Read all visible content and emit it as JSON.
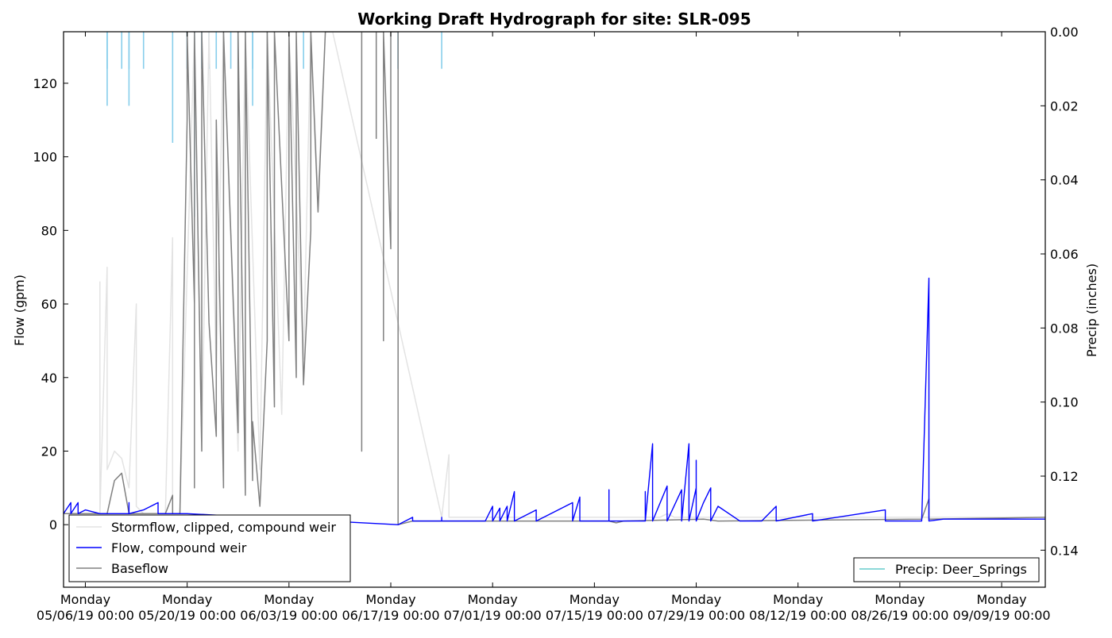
{
  "chart_data": {
    "type": "line",
    "title": "Working Draft Hydrograph for site: SLR-095",
    "ylabel": "Flow (gpm)",
    "y2label": "Precip (inches)",
    "xlim": [
      "2019-05-03",
      "2019-09-15"
    ],
    "ylim": [
      -17,
      134
    ],
    "y2lim": [
      0.15,
      0.0
    ],
    "y2_inverted": true,
    "grid": false,
    "x_ticks": [
      {
        "date": "2019-05-06",
        "line1": "Monday",
        "line2": "05/06/19 00:00"
      },
      {
        "date": "2019-05-20",
        "line1": "Monday",
        "line2": "05/20/19 00:00"
      },
      {
        "date": "2019-06-03",
        "line1": "Monday",
        "line2": "06/03/19 00:00"
      },
      {
        "date": "2019-06-17",
        "line1": "Monday",
        "line2": "06/17/19 00:00"
      },
      {
        "date": "2019-07-01",
        "line1": "Monday",
        "line2": "07/01/19 00:00"
      },
      {
        "date": "2019-07-15",
        "line1": "Monday",
        "line2": "07/15/19 00:00"
      },
      {
        "date": "2019-07-29",
        "line1": "Monday",
        "line2": "07/29/19 00:00"
      },
      {
        "date": "2019-08-12",
        "line1": "Monday",
        "line2": "08/12/19 00:00"
      },
      {
        "date": "2019-08-26",
        "line1": "Monday",
        "line2": "08/26/19 00:00"
      },
      {
        "date": "2019-09-09",
        "line1": "Monday",
        "line2": "09/09/19 00:00"
      }
    ],
    "y_ticks": [
      "0",
      "20",
      "40",
      "60",
      "80",
      "100",
      "120"
    ],
    "y2_ticks": [
      "0.00",
      "0.02",
      "0.04",
      "0.06",
      "0.08",
      "0.10",
      "0.12",
      "0.14"
    ],
    "legend_main": {
      "placement": "lower-left",
      "entries": [
        "Stormflow, clipped, compound weir",
        "Flow, compound weir",
        "Baseflow"
      ]
    },
    "legend_precip": {
      "placement": "lower-right",
      "entries": [
        "Precip: Deer_Springs"
      ]
    },
    "colors": {
      "stormflow": "#e3e3e3",
      "flow": "#0000ff",
      "baseflow": "#808080",
      "precip": "#87ceeb",
      "precip_legend": "#66cccc"
    },
    "series": [
      {
        "name": "Stormflow, clipped, compound weir",
        "points": [
          [
            "2019-05-03",
            3
          ],
          [
            "2019-05-08",
            3
          ],
          [
            "2019-05-08",
            66
          ],
          [
            "2019-05-08",
            3
          ],
          [
            "2019-05-09",
            70
          ],
          [
            "2019-05-09",
            15
          ],
          [
            "2019-05-10",
            20
          ],
          [
            "2019-05-11",
            18
          ],
          [
            "2019-05-12",
            10
          ],
          [
            "2019-05-13",
            60
          ],
          [
            "2019-05-13",
            5
          ],
          [
            "2019-05-14",
            3
          ],
          [
            "2019-05-17",
            3
          ],
          [
            "2019-05-18",
            78
          ],
          [
            "2019-05-18",
            3
          ],
          [
            "2019-05-19",
            3
          ],
          [
            "2019-05-21",
            134
          ],
          [
            "2019-05-22",
            20
          ],
          [
            "2019-05-23",
            134
          ],
          [
            "2019-05-24",
            40
          ],
          [
            "2019-05-25",
            134
          ],
          [
            "2019-05-27",
            20
          ],
          [
            "2019-05-28",
            134
          ],
          [
            "2019-05-30",
            15
          ],
          [
            "2019-05-31",
            134
          ],
          [
            "2019-06-02",
            30
          ],
          [
            "2019-06-03",
            134
          ],
          [
            "2019-06-05",
            45
          ],
          [
            "2019-06-06",
            134
          ],
          [
            "2019-06-07",
            90
          ],
          [
            "2019-06-08",
            134
          ],
          [
            "2019-06-09",
            134
          ],
          [
            "2019-06-24",
            2
          ],
          [
            "2019-06-25",
            19
          ],
          [
            "2019-06-25",
            2
          ],
          [
            "2019-07-24",
            2
          ],
          [
            "2019-07-25",
            3
          ],
          [
            "2019-07-26",
            2
          ],
          [
            "2019-09-15",
            2
          ]
        ]
      },
      {
        "name": "Flow, compound weir",
        "points": [
          [
            "2019-05-03",
            3
          ],
          [
            "2019-05-04",
            6
          ],
          [
            "2019-05-04",
            3
          ],
          [
            "2019-05-05",
            6
          ],
          [
            "2019-05-05",
            3
          ],
          [
            "2019-05-06",
            4
          ],
          [
            "2019-05-08",
            3
          ],
          [
            "2019-05-12",
            3
          ],
          [
            "2019-05-12",
            6
          ],
          [
            "2019-05-12",
            3
          ],
          [
            "2019-05-14",
            4
          ],
          [
            "2019-05-16",
            6
          ],
          [
            "2019-05-16",
            3
          ],
          [
            "2019-05-20",
            3
          ],
          [
            "2019-06-18",
            0
          ],
          [
            "2019-06-19",
            1
          ],
          [
            "2019-06-20",
            2
          ],
          [
            "2019-06-20",
            1
          ],
          [
            "2019-06-24",
            1
          ],
          [
            "2019-06-24",
            2
          ],
          [
            "2019-06-24",
            1
          ],
          [
            "2019-06-30",
            1
          ],
          [
            "2019-07-01",
            5
          ],
          [
            "2019-07-01",
            1
          ],
          [
            "2019-07-02",
            4.5
          ],
          [
            "2019-07-02",
            1
          ],
          [
            "2019-07-03",
            5
          ],
          [
            "2019-07-03",
            1
          ],
          [
            "2019-07-04",
            9
          ],
          [
            "2019-07-04",
            1
          ],
          [
            "2019-07-07",
            4
          ],
          [
            "2019-07-07",
            1
          ],
          [
            "2019-07-12",
            6
          ],
          [
            "2019-07-12",
            1
          ],
          [
            "2019-07-13",
            7.5
          ],
          [
            "2019-07-13",
            1
          ],
          [
            "2019-07-17",
            1
          ],
          [
            "2019-07-17",
            9.5
          ],
          [
            "2019-07-17",
            1
          ],
          [
            "2019-07-22",
            1
          ],
          [
            "2019-07-22",
            9
          ],
          [
            "2019-07-22",
            1
          ],
          [
            "2019-07-23",
            22
          ],
          [
            "2019-07-23",
            1
          ],
          [
            "2019-07-25",
            10.5
          ],
          [
            "2019-07-25",
            1
          ],
          [
            "2019-07-27",
            9.5
          ],
          [
            "2019-07-27",
            1
          ],
          [
            "2019-07-28",
            22
          ],
          [
            "2019-07-28",
            1
          ],
          [
            "2019-07-29",
            10
          ],
          [
            "2019-07-29",
            1
          ],
          [
            "2019-07-29",
            17.5
          ],
          [
            "2019-07-29",
            1
          ],
          [
            "2019-07-30",
            6
          ],
          [
            "2019-07-31",
            10
          ],
          [
            "2019-07-31",
            1
          ],
          [
            "2019-08-01",
            5
          ],
          [
            "2019-08-04",
            1
          ],
          [
            "2019-08-07",
            1
          ],
          [
            "2019-08-09",
            5
          ],
          [
            "2019-08-09",
            1
          ],
          [
            "2019-08-14",
            3
          ],
          [
            "2019-08-14",
            1
          ],
          [
            "2019-08-24",
            4
          ],
          [
            "2019-08-24",
            1
          ],
          [
            "2019-08-29",
            1
          ],
          [
            "2019-08-30",
            67
          ],
          [
            "2019-08-30",
            45
          ],
          [
            "2019-08-30",
            1
          ],
          [
            "2019-09-01",
            1.5
          ],
          [
            "2019-09-15",
            1.5
          ]
        ]
      },
      {
        "name": "Baseflow",
        "points": [
          [
            "2019-05-03",
            3
          ],
          [
            "2019-05-06",
            3
          ],
          [
            "2019-05-09",
            3
          ],
          [
            "2019-05-10",
            12
          ],
          [
            "2019-05-11",
            14
          ],
          [
            "2019-05-12",
            3
          ],
          [
            "2019-05-17",
            3
          ],
          [
            "2019-05-18",
            8
          ],
          [
            "2019-05-18",
            3
          ],
          [
            "2019-05-19",
            3
          ],
          [
            "2019-05-20",
            110
          ],
          [
            "2019-05-20",
            134
          ],
          [
            "2019-05-21",
            60
          ],
          [
            "2019-05-21",
            10
          ],
          [
            "2019-05-21",
            134
          ],
          [
            "2019-05-22",
            20
          ],
          [
            "2019-05-22",
            134
          ],
          [
            "2019-05-23",
            55
          ],
          [
            "2019-05-24",
            24
          ],
          [
            "2019-05-24",
            110
          ],
          [
            "2019-05-25",
            10
          ],
          [
            "2019-05-25",
            134
          ],
          [
            "2019-05-27",
            25
          ],
          [
            "2019-05-27",
            134
          ],
          [
            "2019-05-28",
            8
          ],
          [
            "2019-05-28",
            134
          ],
          [
            "2019-05-29",
            12
          ],
          [
            "2019-05-29",
            28
          ],
          [
            "2019-05-30",
            5
          ],
          [
            "2019-05-31",
            50
          ],
          [
            "2019-05-31",
            134
          ],
          [
            "2019-06-01",
            32
          ],
          [
            "2019-06-01",
            134
          ],
          [
            "2019-06-03",
            50
          ],
          [
            "2019-06-03",
            134
          ],
          [
            "2019-06-04",
            40
          ],
          [
            "2019-06-04",
            134
          ],
          [
            "2019-06-05",
            38
          ],
          [
            "2019-06-06",
            80
          ],
          [
            "2019-06-06",
            134
          ],
          [
            "2019-06-07",
            85
          ],
          [
            "2019-06-08",
            134
          ],
          [
            "2019-06-09",
            134
          ],
          [
            "2019-06-10",
            134
          ],
          [
            "2019-06-13",
            134
          ],
          [
            "2019-06-13",
            20
          ],
          [
            "2019-06-13",
            134
          ],
          [
            "2019-06-15",
            134
          ],
          [
            "2019-06-15",
            105
          ],
          [
            "2019-06-15",
            134
          ],
          [
            "2019-06-16",
            134
          ],
          [
            "2019-06-16",
            50
          ],
          [
            "2019-06-16",
            134
          ],
          [
            "2019-06-17",
            75
          ],
          [
            "2019-06-17",
            134
          ],
          [
            "2019-06-18",
            134
          ],
          [
            "2019-06-18",
            0
          ],
          [
            "2019-06-20",
            1
          ],
          [
            "2019-07-01",
            1
          ],
          [
            "2019-07-17",
            1
          ],
          [
            "2019-07-18",
            0.5
          ],
          [
            "2019-07-19",
            1
          ],
          [
            "2019-07-30",
            1.5
          ],
          [
            "2019-08-01",
            1
          ],
          [
            "2019-08-29",
            1.5
          ],
          [
            "2019-08-30",
            7
          ],
          [
            "2019-08-30",
            1.5
          ],
          [
            "2019-09-15",
            2
          ]
        ]
      },
      {
        "name": "Precip: Deer_Springs",
        "bars_inches": [
          [
            "2019-05-09",
            0.02
          ],
          [
            "2019-05-09",
            0.01
          ],
          [
            "2019-05-11",
            0.01
          ],
          [
            "2019-05-12",
            0.02
          ],
          [
            "2019-05-12",
            0.01
          ],
          [
            "2019-05-14",
            0.01
          ],
          [
            "2019-05-18",
            0.03
          ],
          [
            "2019-05-20",
            0.01
          ],
          [
            "2019-05-20",
            0.01
          ],
          [
            "2019-05-21",
            0.01
          ],
          [
            "2019-05-21",
            0.05
          ],
          [
            "2019-05-22",
            0.01
          ],
          [
            "2019-05-23",
            0.01
          ],
          [
            "2019-05-24",
            0.01
          ],
          [
            "2019-05-26",
            0.01
          ],
          [
            "2019-05-27",
            0.01
          ],
          [
            "2019-05-28",
            0.01
          ],
          [
            "2019-05-29",
            0.02
          ],
          [
            "2019-05-29",
            0.01
          ],
          [
            "2019-05-31",
            0.01
          ],
          [
            "2019-06-05",
            0.01
          ],
          [
            "2019-06-18",
            0.01
          ],
          [
            "2019-06-18",
            0.01
          ],
          [
            "2019-06-24",
            0.01
          ]
        ]
      }
    ]
  }
}
